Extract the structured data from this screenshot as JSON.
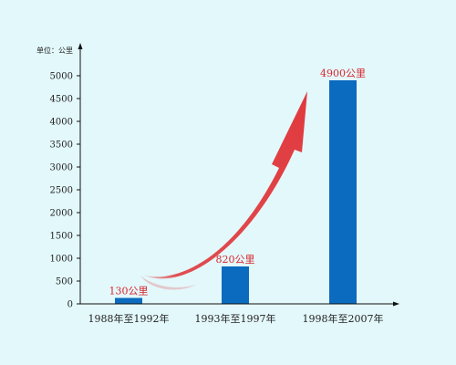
{
  "chart_data": {
    "type": "bar",
    "unit_label": "单位：公里",
    "categories": [
      "1988年至1992年",
      "1993年至1997年",
      "1998年至2007年"
    ],
    "values": [
      130,
      820,
      4900
    ],
    "data_labels": [
      "130公里",
      "820公里",
      "4900公里"
    ],
    "ylim": [
      0,
      5000
    ],
    "yticks": [
      0,
      500,
      1000,
      1500,
      2000,
      2500,
      3000,
      3500,
      4000,
      4500,
      5000
    ],
    "grid": false,
    "legend": "none",
    "annotation": "red upward-curving growth arrow from first bar to last bar",
    "colors": {
      "bar": "#0a6bbf",
      "data_label": "#d8262c",
      "arrow": "#e03a3e",
      "axis": "#111111",
      "background": "#e3f8fb"
    }
  }
}
